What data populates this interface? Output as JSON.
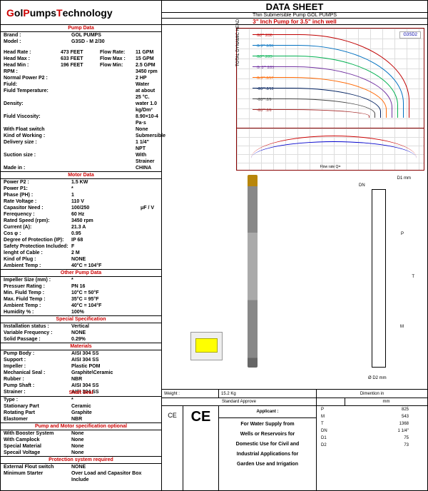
{
  "logo": {
    "g": "G",
    "ol": "ol ",
    "p": "P",
    "umps": "umps ",
    "t": "T",
    "ech": "echnology"
  },
  "title": {
    "main": "DATA SHEET",
    "sub": "Thin Submersible Pump GOL PUMPS",
    "red": "3\" Inch Pump for 3.5\" inch well"
  },
  "sections": {
    "pumpData": "Pump Data",
    "motorData": "Motor Data",
    "otherPump": "Other Pump Data",
    "special": "Special Specification",
    "materials": "Materials",
    "shaftSeal": "Shaft Seal",
    "pumpMotor": "Pump and Motor specification optional",
    "protection": "Protection system required"
  },
  "pumpData": [
    {
      "k": "Brand :",
      "v": "GOL PUMPS"
    },
    {
      "k": "Model :",
      "v": "G3SD - M 2/30",
      "gap": true
    },
    {
      "k": "Head Rate :",
      "v": "473  FEET",
      "k2": "Flow Rate:",
      "v2": "11  GPM"
    },
    {
      "k": "Head Max :",
      "v": "633  FEET",
      "k2": "Flow Max :",
      "v2": "15  GPM"
    },
    {
      "k": "Head Min :",
      "v": "196  FEET",
      "k2": "Flow Min:",
      "v2": "2.5  GPM"
    },
    {
      "k": "RPM :",
      "v": "",
      "k2": "",
      "v2": "3450  rpm"
    },
    {
      "k": "Normal Power P2 :",
      "v": "",
      "k2": "",
      "v2": "2  HP"
    },
    {
      "k": "Fiuld:",
      "v": "",
      "k2": "",
      "v2": "Water"
    },
    {
      "k": "Fiuld Temperature:",
      "v": "",
      "k2": "",
      "v2": "at about 25 °C."
    },
    {
      "k": "Density:",
      "v": "",
      "k2": "",
      "v2": "water 1.0 kg/Dm³"
    },
    {
      "k": "Fiuld Viscosity:",
      "v": "",
      "k2": "",
      "v2": "8.90×10-4 Pa·s"
    },
    {
      "k": "With Float switch",
      "v": "",
      "k2": "",
      "v2": "None"
    },
    {
      "k": "Kind of Working :",
      "v": "",
      "k2": "",
      "v2": "Submersible"
    },
    {
      "k": "Delivery size :",
      "v": "",
      "k2": "",
      "v2": "1 1/4\"  NPT"
    },
    {
      "k": "Suction size :",
      "v": "",
      "k2": "",
      "v2": "With Strainer"
    },
    {
      "k": "Made in :",
      "v": "",
      "k2": "",
      "v2": "CHINA"
    }
  ],
  "motorData": [
    {
      "k": "Power P2 :",
      "v": "1.5  KW"
    },
    {
      "k": "Power P1:",
      "v": "*"
    },
    {
      "k": "Phase (PH) :",
      "v": "1"
    },
    {
      "k": "Rate Voltage :",
      "v": "110  V"
    },
    {
      "k": "Capasitor Need :",
      "v": "100/250",
      "u": "μF / V"
    },
    {
      "k": "Ferequency :",
      "v": "60 Hz"
    },
    {
      "k": "Rated Speed (rpm):",
      "v": "3450  rpm"
    },
    {
      "k": "Current (A):",
      "v": "21.3  A"
    },
    {
      "k": "Cos φ :",
      "v": "0.95"
    },
    {
      "k": "Degree of Protection (IP):",
      "v": "IP 68"
    },
    {
      "k": "Safety Protection Included:",
      "v": "F"
    },
    {
      "k": "lenght of Cable :",
      "v": "2  M"
    },
    {
      "k": "Kind of Plug :",
      "v": "NONE"
    },
    {
      "k": "Ambient Temp :",
      "v": "40°C = 104°F"
    }
  ],
  "otherPump": [
    {
      "k": "Impeller Size (mm) :",
      "v": "*"
    },
    {
      "k": "Pressuer Rating :",
      "v": "PN  16"
    },
    {
      "k": "Min. Fiuld Temp :",
      "v": "10°C = 50°F"
    },
    {
      "k": "Max. Fiuld Temp :",
      "v": "35°C = 95°F"
    },
    {
      "k": "Ambient Temp :",
      "v": "40°C = 104°F"
    },
    {
      "k": "Humidity % :",
      "v": "100%"
    }
  ],
  "special": [
    {
      "k": "Installation status :",
      "v": "Vertical"
    },
    {
      "k": "Variable Frequency :",
      "v": "NONE"
    },
    {
      "k": "Solid Passage :",
      "v": "0.29%"
    }
  ],
  "materials": [
    {
      "k": "Pump Body :",
      "v": "AISI 304 SS"
    },
    {
      "k": "Support :",
      "v": "AISI 304 SS"
    },
    {
      "k": "Impeller :",
      "v": "Plastic POM"
    },
    {
      "k": "Mechanical Seal :",
      "v": "Graphite\\Ceramic"
    },
    {
      "k": "Rubber :",
      "v": "NBR"
    },
    {
      "k": "Pump Shaft :",
      "v": "AISI 304 SS"
    },
    {
      "k": "Strainer :",
      "v": "AISI 304 SS"
    },
    {
      "k": "outer cover :",
      "v": "Cast Iron"
    },
    {
      "k": "Motor Case :",
      "v": "AISI 304 SS"
    }
  ],
  "shaftSeal": [
    {
      "k": "Type :",
      "v": "*"
    },
    {
      "k": "Stationary Part",
      "v": "Ceramic"
    },
    {
      "k": "Rotating Part",
      "v": "Graphite"
    },
    {
      "k": "Elastomer",
      "v": "NBR"
    }
  ],
  "pumpMotor": [
    {
      "k": "With Booster System",
      "v": "None"
    },
    {
      "k": "With Camplock",
      "v": "None"
    },
    {
      "k": "Special Material",
      "v": "None"
    },
    {
      "k": "Specail Voltage",
      "v": "None"
    }
  ],
  "protection": [
    {
      "k": "External Flout switch",
      "v": "NONE"
    },
    {
      "k": "Minimum Starter",
      "v": "Over Load and Capasitor Box Include"
    }
  ],
  "chart": {
    "legend": "G3SD2",
    "yLabel": "TOTAL DYNAMIC HEAD",
    "xLabel": "Flow rate   Q=",
    "curves": [
      "G3** 2/30",
      "G 3** 2/26",
      "G3**.2/23",
      "G .3** 2/21",
      "G.3**.2/17",
      "-G3**.2/13",
      "-G3**.2/9",
      "-G3**.2/6"
    ],
    "colors": [
      "#c00000",
      "#0070c0",
      "#00b050",
      "#7030a0",
      "#ff6600",
      "#002060",
      "#444",
      "#a52a2a"
    ],
    "yTicks": [
      210,
      190,
      170,
      150,
      130,
      110,
      90,
      70,
      50,
      30,
      10
    ],
    "xTicks": [
      0,
      5,
      10,
      15,
      20,
      25,
      30,
      35,
      40,
      45,
      50,
      55,
      60,
      65,
      70
    ]
  },
  "bottom": {
    "weight": {
      "label": "Weight :",
      "value": "15.2  Kg"
    },
    "stdApprove": "Standard Approve",
    "ce": "CE",
    "applicant": {
      "head": "Applicant :",
      "lines": [
        "For Water Supply from",
        "Wells or Reservoirs for",
        "Domestic Use for Civil and",
        "Industrial Applications for",
        "Garden Use and Irrigation"
      ]
    },
    "dimHead": "Dimention  in",
    "dimUnit": "mm",
    "dims": [
      {
        "k": "P",
        "v": "825"
      },
      {
        "k": "M",
        "v": "543"
      },
      {
        "k": "T",
        "v": "1368"
      },
      {
        "k": "DN",
        "v": "1 1/4\""
      },
      {
        "k": "D1",
        "v": "75"
      },
      {
        "k": "D2",
        "v": "73"
      }
    ]
  },
  "dimDiag": {
    "top": "D1 mm",
    "dn": "DN",
    "p": "P",
    "t": "T",
    "m": "M",
    "d2s": "Ø D2 mm"
  }
}
